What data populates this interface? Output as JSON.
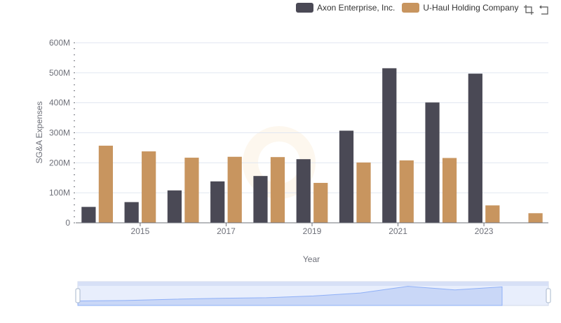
{
  "legend": {
    "items": [
      {
        "label": "Axon Enterprise, Inc.",
        "color": "#4a4955"
      },
      {
        "label": "U-Haul Holding Company",
        "color": "#c8955f"
      }
    ]
  },
  "toolbox": {
    "icons": [
      "zoom-icon",
      "restore-icon"
    ]
  },
  "chart_data": {
    "type": "bar",
    "xlabel": "Year",
    "ylabel": "SG&A Expenses",
    "ylim": [
      0,
      600
    ],
    "y_ticks": [
      "0",
      "100M",
      "200M",
      "300M",
      "400M",
      "500M",
      "600M"
    ],
    "x_ticks": [
      "2015",
      "2017",
      "2019",
      "2021",
      "2023"
    ],
    "categories": [
      "2014",
      "2015",
      "2016",
      "2017",
      "2018",
      "2019",
      "2020",
      "2021",
      "2022",
      "2023",
      "2024"
    ],
    "series": [
      {
        "name": "Axon Enterprise, Inc.",
        "color": "#4a4955",
        "values": [
          53,
          69,
          108,
          138,
          156,
          212,
          307,
          515,
          401,
          497,
          null
        ]
      },
      {
        "name": "U-Haul Holding Company",
        "color": "#c8955f",
        "values": [
          257,
          238,
          217,
          220,
          219,
          133,
          201,
          208,
          216,
          58,
          32
        ]
      }
    ],
    "grid": true,
    "legend_position": "top-right",
    "data_zoom": true
  }
}
